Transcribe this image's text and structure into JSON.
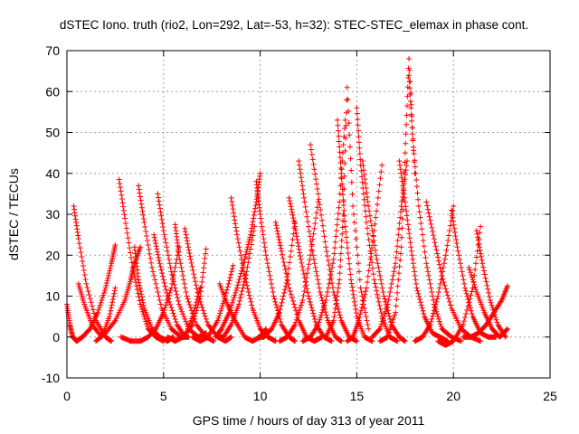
{
  "chart_data": {
    "type": "scatter",
    "title": "dSTEC Iono. truth (rio2, Lon=292, Lat=-53, h=32): STEC-STEC_elemax in phase cont.",
    "xlabel": "GPS time / hours of day 313 of year 2011",
    "ylabel": "dSTEC  / TECUs",
    "xlim": [
      0,
      25
    ],
    "ylim": [
      -10,
      70
    ],
    "xticks": [
      0,
      5,
      10,
      15,
      20,
      25
    ],
    "yticks": [
      -10,
      0,
      10,
      20,
      30,
      40,
      50,
      60,
      70
    ],
    "xtick_labels": [
      "0",
      "5",
      "10",
      "15",
      "20",
      "25"
    ],
    "ytick_labels": [
      "-10",
      "0",
      "10",
      "20",
      "30",
      "40",
      "50",
      "60",
      "70"
    ],
    "grid": true,
    "marker": "plus",
    "color": "#ff0000",
    "series": [
      {
        "x": [
          0.0,
          0.15,
          0.3,
          0.5,
          0.8,
          1.2,
          1.6,
          2.0,
          2.3,
          2.5
        ],
        "y": [
          8,
          3,
          0,
          -1,
          0,
          2,
          6,
          12,
          18,
          22.5
        ]
      },
      {
        "x": [
          0.35,
          0.6,
          1.0,
          1.5,
          2.0,
          2.3
        ],
        "y": [
          32,
          24,
          13,
          4,
          0,
          -1
        ]
      },
      {
        "x": [
          0.6,
          0.9,
          1.3,
          1.8,
          2.2,
          2.5
        ],
        "y": [
          13,
          8,
          3,
          0,
          5,
          12
        ]
      },
      {
        "x": [
          1.5,
          2.0,
          2.5,
          3.0,
          3.3,
          3.5,
          3.8
        ],
        "y": [
          -1,
          1,
          4,
          9,
          14,
          18,
          22
        ]
      },
      {
        "x": [
          2.7,
          3.0,
          3.4,
          3.8,
          4.2,
          4.6,
          5.0
        ],
        "y": [
          38.5,
          29,
          17,
          8,
          2,
          0,
          -1
        ]
      },
      {
        "x": [
          2.8,
          3.3,
          3.8,
          4.2,
          4.6,
          5.0,
          5.4,
          5.8
        ],
        "y": [
          0,
          -1,
          -1,
          0,
          2,
          6,
          12,
          22
        ]
      },
      {
        "x": [
          3.5,
          3.7,
          4.0,
          4.4,
          4.8,
          5.2,
          5.5
        ],
        "y": [
          22,
          14,
          7,
          2,
          0,
          -1,
          0
        ]
      },
      {
        "x": [
          3.7,
          4.0,
          4.4,
          4.9,
          5.4,
          5.9,
          6.3
        ],
        "y": [
          37,
          28,
          17,
          7,
          2,
          0,
          0
        ]
      },
      {
        "x": [
          4.5,
          4.8,
          5.2,
          5.7,
          6.1,
          6.5,
          6.9
        ],
        "y": [
          25,
          18,
          10,
          3,
          0,
          5,
          12
        ]
      },
      {
        "x": [
          4.7,
          5.0,
          5.4,
          5.8,
          6.3,
          6.8,
          7.2
        ],
        "y": [
          35,
          26,
          16,
          8,
          2,
          0,
          1
        ]
      },
      {
        "x": [
          5.2,
          5.6,
          6.0,
          6.5,
          6.9,
          7.2
        ],
        "y": [
          0,
          -1,
          0,
          3,
          10,
          21.5
        ]
      },
      {
        "x": [
          5.6,
          5.8,
          6.2,
          6.7,
          7.2,
          7.6
        ],
        "y": [
          27.5,
          20,
          10,
          3,
          0,
          -1
        ]
      },
      {
        "x": [
          6.1,
          6.4,
          6.8,
          7.3,
          7.8,
          8.2,
          8.5
        ],
        "y": [
          26.5,
          19,
          10,
          3,
          0,
          -1,
          0
        ]
      },
      {
        "x": [
          6.5,
          6.9,
          7.3,
          7.8,
          8.2,
          8.6
        ],
        "y": [
          0,
          -1,
          0,
          4,
          10,
          17.5
        ]
      },
      {
        "x": [
          7.7,
          8.0,
          8.4,
          8.8,
          9.2,
          9.5,
          9.8,
          10.0
        ],
        "y": [
          0,
          2,
          6,
          12,
          19,
          25,
          33,
          40
        ]
      },
      {
        "x": [
          7.8,
          8.1,
          8.5,
          8.9,
          9.3,
          9.7
        ],
        "y": [
          0,
          0,
          3,
          8,
          16,
          27
        ]
      },
      {
        "x": [
          7.9,
          8.3,
          8.7,
          9.2,
          9.6,
          10.0,
          10.3
        ],
        "y": [
          13,
          8,
          4,
          0,
          -1,
          0,
          2
        ]
      },
      {
        "x": [
          8.5,
          8.8,
          9.2,
          9.6,
          10.0,
          10.4,
          10.8
        ],
        "y": [
          34,
          25,
          15,
          7,
          2,
          0,
          -1
        ]
      },
      {
        "x": [
          9.8,
          10.0,
          10.3,
          10.7,
          11.1,
          11.5,
          11.8
        ],
        "y": [
          38,
          30,
          20,
          10,
          3,
          0,
          -1
        ]
      },
      {
        "x": [
          9.9,
          10.2,
          10.6,
          11.0,
          11.4,
          11.8
        ],
        "y": [
          0,
          0,
          2,
          6,
          14,
          28
        ]
      },
      {
        "x": [
          10.8,
          11.1,
          11.5,
          12.0,
          12.4,
          12.8,
          13.2
        ],
        "y": [
          28,
          21,
          12,
          4,
          0,
          -1,
          0
        ]
      },
      {
        "x": [
          11.0,
          11.4,
          11.8,
          12.2,
          12.6,
          13.0
        ],
        "y": [
          -1,
          0,
          3,
          9,
          20,
          33
        ]
      },
      {
        "x": [
          11.5,
          11.8,
          12.1,
          12.5,
          12.9,
          13.3,
          13.7
        ],
        "y": [
          34,
          27,
          19,
          10,
          3,
          0,
          -1
        ]
      },
      {
        "x": [
          12.0,
          12.3,
          12.7,
          13.1,
          13.5,
          13.9,
          14.2
        ],
        "y": [
          43,
          33,
          21,
          11,
          4,
          0,
          -1
        ]
      },
      {
        "x": [
          12.2,
          12.6,
          13.0,
          13.4,
          13.8,
          14.1,
          14.4
        ],
        "y": [
          -1,
          0,
          3,
          9,
          19,
          33,
          53
        ]
      },
      {
        "x": [
          12.6,
          13.0,
          13.4,
          13.8,
          14.2,
          14.6,
          15.0
        ],
        "y": [
          47,
          35,
          22,
          11,
          4,
          0,
          -1
        ]
      },
      {
        "x": [
          13.4,
          13.8,
          14.1,
          14.3,
          14.5,
          14.8,
          15.2,
          15.6
        ],
        "y": [
          0,
          4,
          14,
          30,
          61,
          32,
          12,
          2
        ]
      },
      {
        "x": [
          14.0,
          14.2,
          14.4,
          14.7,
          15.0,
          15.4,
          15.8
        ],
        "y": [
          53,
          40,
          27,
          14,
          5,
          0,
          -1
        ]
      },
      {
        "x": [
          14.5,
          14.8,
          15.1,
          15.5,
          15.9,
          16.3
        ],
        "y": [
          -1,
          0,
          4,
          12,
          26,
          42
        ]
      },
      {
        "x": [
          15.0,
          15.2,
          15.5,
          15.9,
          16.3,
          16.7,
          17.1
        ],
        "y": [
          56,
          42,
          28,
          14,
          5,
          0,
          -1
        ]
      },
      {
        "x": [
          15.3,
          15.6,
          16.0,
          16.4,
          16.8,
          17.2,
          17.5
        ],
        "y": [
          43,
          32,
          20,
          10,
          3,
          0,
          -1
        ]
      },
      {
        "x": [
          15.8,
          16.2,
          16.6,
          17.0,
          17.3,
          17.6
        ],
        "y": [
          0,
          2,
          8,
          18,
          32,
          43
        ]
      },
      {
        "x": [
          16.2,
          16.6,
          17.0,
          17.3,
          17.5,
          17.7,
          18.0
        ],
        "y": [
          -1,
          0,
          6,
          22,
          45,
          68,
          40
        ]
      },
      {
        "x": [
          17.2,
          17.5,
          17.8,
          18.1,
          18.5,
          18.9,
          19.3,
          19.7
        ],
        "y": [
          43,
          33,
          22,
          12,
          5,
          1,
          0,
          -1
        ]
      },
      {
        "x": [
          17.7,
          17.9,
          18.2,
          18.6,
          19.0,
          19.4,
          19.9,
          20.4
        ],
        "y": [
          64,
          48,
          32,
          18,
          8,
          2,
          0,
          -1
        ]
      },
      {
        "x": [
          18.0,
          18.4,
          18.8,
          19.2,
          19.6,
          20.0
        ],
        "y": [
          -1,
          0,
          3,
          10,
          20,
          32
        ]
      },
      {
        "x": [
          18.6,
          19.0,
          19.4,
          19.9,
          20.4,
          20.9,
          21.4
        ],
        "y": [
          33,
          24,
          15,
          7,
          2,
          0,
          -1
        ]
      },
      {
        "x": [
          19.2,
          19.6,
          20.0,
          20.5,
          21.0,
          21.4
        ],
        "y": [
          -1,
          -2,
          -1,
          3,
          12,
          27
        ]
      },
      {
        "x": [
          19.9,
          20.2,
          20.6,
          21.0,
          21.4,
          21.8,
          22.2
        ],
        "y": [
          31,
          22,
          12,
          5,
          1,
          0,
          0
        ]
      },
      {
        "x": [
          20.5,
          20.9,
          21.3,
          21.7,
          22.1,
          22.5,
          22.8
        ],
        "y": [
          0,
          0,
          1,
          3,
          6,
          9,
          12.5
        ]
      },
      {
        "x": [
          21.2,
          21.5,
          21.9,
          22.3,
          22.7
        ],
        "y": [
          26,
          18,
          9,
          3,
          0
        ]
      },
      {
        "x": [
          20.8,
          21.2,
          21.6,
          22.0,
          22.4,
          22.8
        ],
        "y": [
          17,
          11,
          6,
          2,
          0,
          2
        ]
      }
    ]
  }
}
